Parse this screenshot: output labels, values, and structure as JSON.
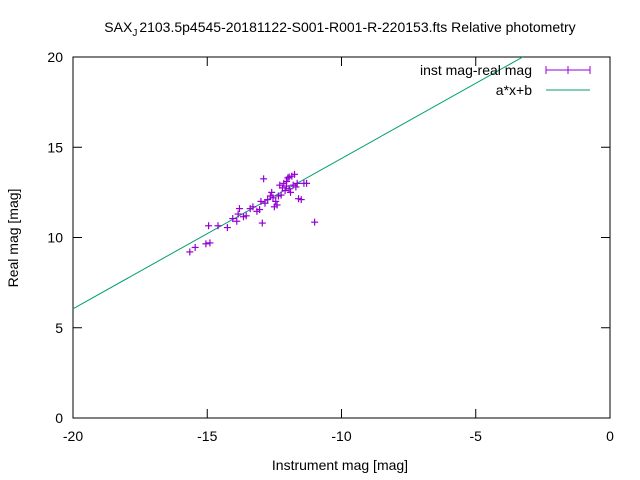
{
  "chart_data": {
    "type": "scatter",
    "title_main": "SAX",
    "title_sub": "J",
    "title_rest": "2103.5p4545-20181122-S001-R001-R-220153.fts Relative photometry",
    "xlabel": "Instrument mag [mag]",
    "ylabel": "Real mag [mag]",
    "xlim": [
      -20,
      0
    ],
    "ylim": [
      0,
      20
    ],
    "xticks": [
      -20,
      -15,
      -10,
      -5,
      0
    ],
    "yticks": [
      0,
      5,
      10,
      15,
      20
    ],
    "grid": false,
    "legend_position": "top-right",
    "series": [
      {
        "name": "inst mag-real mag",
        "kind": "points",
        "color": "#9400d3",
        "points": [
          [
            -15.65,
            9.2
          ],
          [
            -15.45,
            9.45
          ],
          [
            -15.05,
            9.65
          ],
          [
            -14.9,
            9.7
          ],
          [
            -14.95,
            10.65
          ],
          [
            -14.6,
            10.65
          ],
          [
            -14.25,
            10.55
          ],
          [
            -14.05,
            11.05
          ],
          [
            -13.9,
            10.9
          ],
          [
            -13.85,
            11.3
          ],
          [
            -13.8,
            11.6
          ],
          [
            -13.65,
            11.15
          ],
          [
            -13.55,
            11.2
          ],
          [
            -13.4,
            11.6
          ],
          [
            -13.3,
            11.7
          ],
          [
            -13.15,
            11.45
          ],
          [
            -13.05,
            11.55
          ],
          [
            -13.0,
            12.0
          ],
          [
            -12.95,
            10.8
          ],
          [
            -12.9,
            13.25
          ],
          [
            -12.85,
            11.9
          ],
          [
            -12.75,
            12.1
          ],
          [
            -12.65,
            12.3
          ],
          [
            -12.6,
            12.5
          ],
          [
            -12.55,
            12.2
          ],
          [
            -12.5,
            11.7
          ],
          [
            -12.45,
            12.0
          ],
          [
            -12.4,
            11.8
          ],
          [
            -12.35,
            12.3
          ],
          [
            -12.25,
            12.35
          ],
          [
            -12.2,
            12.75
          ],
          [
            -12.15,
            13.0
          ],
          [
            -12.1,
            12.6
          ],
          [
            -12.05,
            13.1
          ],
          [
            -12.0,
            13.3
          ],
          [
            -11.95,
            12.7
          ],
          [
            -11.9,
            12.5
          ],
          [
            -11.85,
            13.4
          ],
          [
            -11.8,
            12.9
          ],
          [
            -11.75,
            13.5
          ],
          [
            -11.7,
            12.8
          ],
          [
            -11.65,
            13.0
          ],
          [
            -11.6,
            12.15
          ],
          [
            -11.5,
            12.1
          ],
          [
            -11.4,
            13.0
          ],
          [
            -11.3,
            13.0
          ],
          [
            -12.05,
            12.85
          ],
          [
            -11.95,
            13.35
          ],
          [
            -12.3,
            12.9
          ],
          [
            -11.0,
            10.85
          ]
        ]
      },
      {
        "name": "a*x+b",
        "kind": "line",
        "color": "#009e73",
        "x": [
          -20,
          -3.25
        ],
        "y": [
          6.05,
          20
        ]
      }
    ]
  }
}
